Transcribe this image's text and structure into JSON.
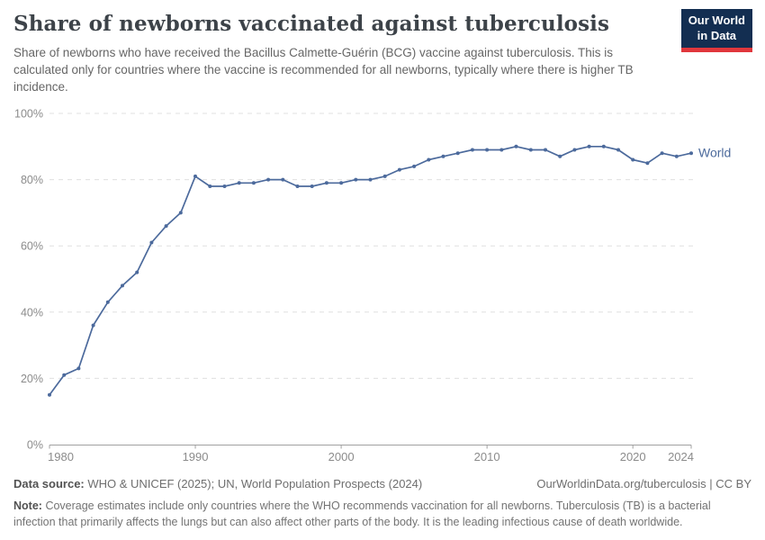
{
  "header": {
    "title": "Share of newborns vaccinated against tuberculosis",
    "subtitle": "Share of newborns who have received the Bacillus Calmette-Guérin (BCG) vaccine against tuberculosis. This is calculated only for countries where the vaccine is recommended for all newborns, typically where there is higher TB incidence.",
    "logo": {
      "line1": "Our World",
      "line2": "in Data"
    }
  },
  "chart_data": {
    "type": "line",
    "title": "Share of newborns vaccinated against tuberculosis",
    "x": [
      1980,
      1981,
      1982,
      1983,
      1984,
      1985,
      1986,
      1987,
      1988,
      1989,
      1990,
      1991,
      1992,
      1993,
      1994,
      1995,
      1996,
      1997,
      1998,
      1999,
      2000,
      2001,
      2002,
      2003,
      2004,
      2005,
      2006,
      2007,
      2008,
      2009,
      2010,
      2011,
      2012,
      2013,
      2014,
      2015,
      2016,
      2017,
      2018,
      2019,
      2020,
      2021,
      2022,
      2023,
      2024
    ],
    "series": [
      {
        "name": "World",
        "color": "#4c6a9c",
        "values": [
          15,
          21,
          23,
          36,
          43,
          48,
          52,
          61,
          66,
          70,
          81,
          78,
          78,
          79,
          79,
          80,
          80,
          78,
          78,
          79,
          79,
          80,
          80,
          81,
          83,
          84,
          86,
          87,
          88,
          89,
          89,
          89,
          90,
          89,
          89,
          87,
          89,
          90,
          90,
          89,
          86,
          85,
          88,
          87,
          88
        ]
      }
    ],
    "xlim": [
      1980,
      2024
    ],
    "ylim": [
      0,
      100
    ],
    "xticks": [
      1980,
      1990,
      2000,
      2010,
      2020,
      2024
    ],
    "yticks": [
      0,
      20,
      40,
      60,
      80,
      100
    ],
    "ytick_suffix": "%",
    "xlabel": "",
    "ylabel": "",
    "grid": "horizontal-dashed",
    "legend_position": "end-of-line",
    "colors": {
      "grid": "#e0e0e0",
      "axis": "#a0a0a0",
      "tick_label": "#8b8b8b"
    }
  },
  "footer": {
    "data_source_label": "Data source:",
    "data_source": "WHO & UNICEF (2025); UN, World Population Prospects (2024)",
    "attribution": "OurWorldinData.org/tuberculosis | CC BY",
    "note_label": "Note:",
    "note": "Coverage estimates include only countries where the WHO recommends vaccination for all newborns. Tuberculosis (TB) is a bacterial infection that primarily affects the lungs but can also affect other parts of the body. It is the leading infectious cause of death worldwide."
  }
}
